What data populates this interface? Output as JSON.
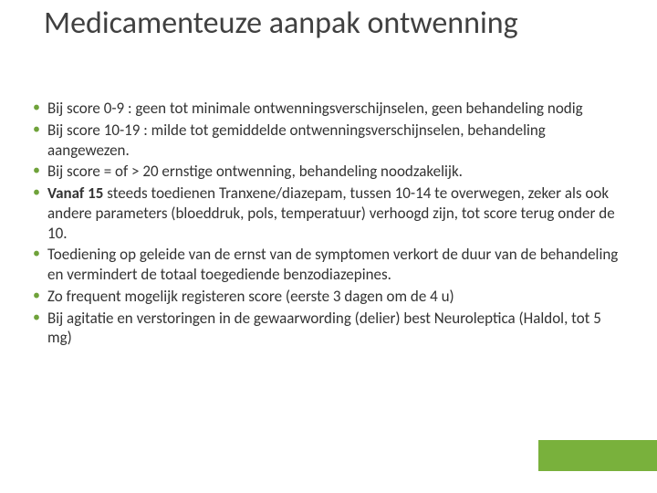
{
  "title": "Medicamenteuze aanpak ontwenning",
  "title_fontsize": 34,
  "title_color": "#404040",
  "bullets": [
    {
      "text": "Bij score 0-9 : geen tot minimale ontwenningsverschijnselen, geen behandeling nodig"
    },
    {
      "text": "Bij score 10-19 : milde tot gemiddelde ontwenningsverschijnselen, behandeling aangewezen."
    },
    {
      "text": "Bij score = of > 20 ernstige ontwenning, behandeling noodzakelijk."
    },
    {
      "bold_prefix": "Vanaf 15",
      "text": " steeds toedienen Tranxene/diazepam, tussen 10-14 te overwegen, zeker als ook andere parameters (bloeddruk, pols, temperatuur) verhoogd zijn, tot score terug onder de 10."
    },
    {
      "text": "Toediening op geleide van de ernst van de symptomen verkort de duur van de behandeling en vermindert de totaal toegediende benzodiazepines."
    },
    {
      "text": "Zo frequent mogelijk registeren score (eerste 3 dagen om de 4 u)"
    },
    {
      "text": "Bij agitatie en verstoringen in de gewaarwording (delier) best Neuroleptica (Haldol, tot 5 mg)"
    }
  ],
  "bullet_fontsize": 17,
  "bullet_color": "#333333",
  "bullet_marker_color": "#6fa23a",
  "accent_color": "#79b13c",
  "background_color": "#ffffff"
}
